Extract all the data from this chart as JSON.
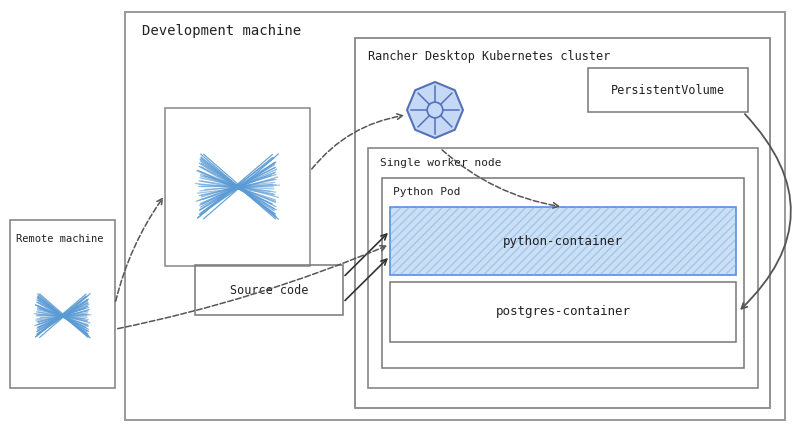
{
  "bg_color": "#ffffff",
  "text_color": "#222222",
  "box_color": "#666666",
  "blue": "#5b8dd9",
  "light_blue": "#cce0f5",
  "hatch_blue": "#7aaee8",
  "dev_machine_label": "Development machine",
  "k8s_cluster_label": "Rancher Desktop Kubernetes cluster",
  "worker_node_label": "Single worker node",
  "python_pod_label": "Python Pod",
  "python_container_label": "python-container",
  "postgres_container_label": "postgres-container",
  "source_code_label": "Source code",
  "pv_label": "PersistentVolume",
  "remote_machine_label": "Remote machine"
}
